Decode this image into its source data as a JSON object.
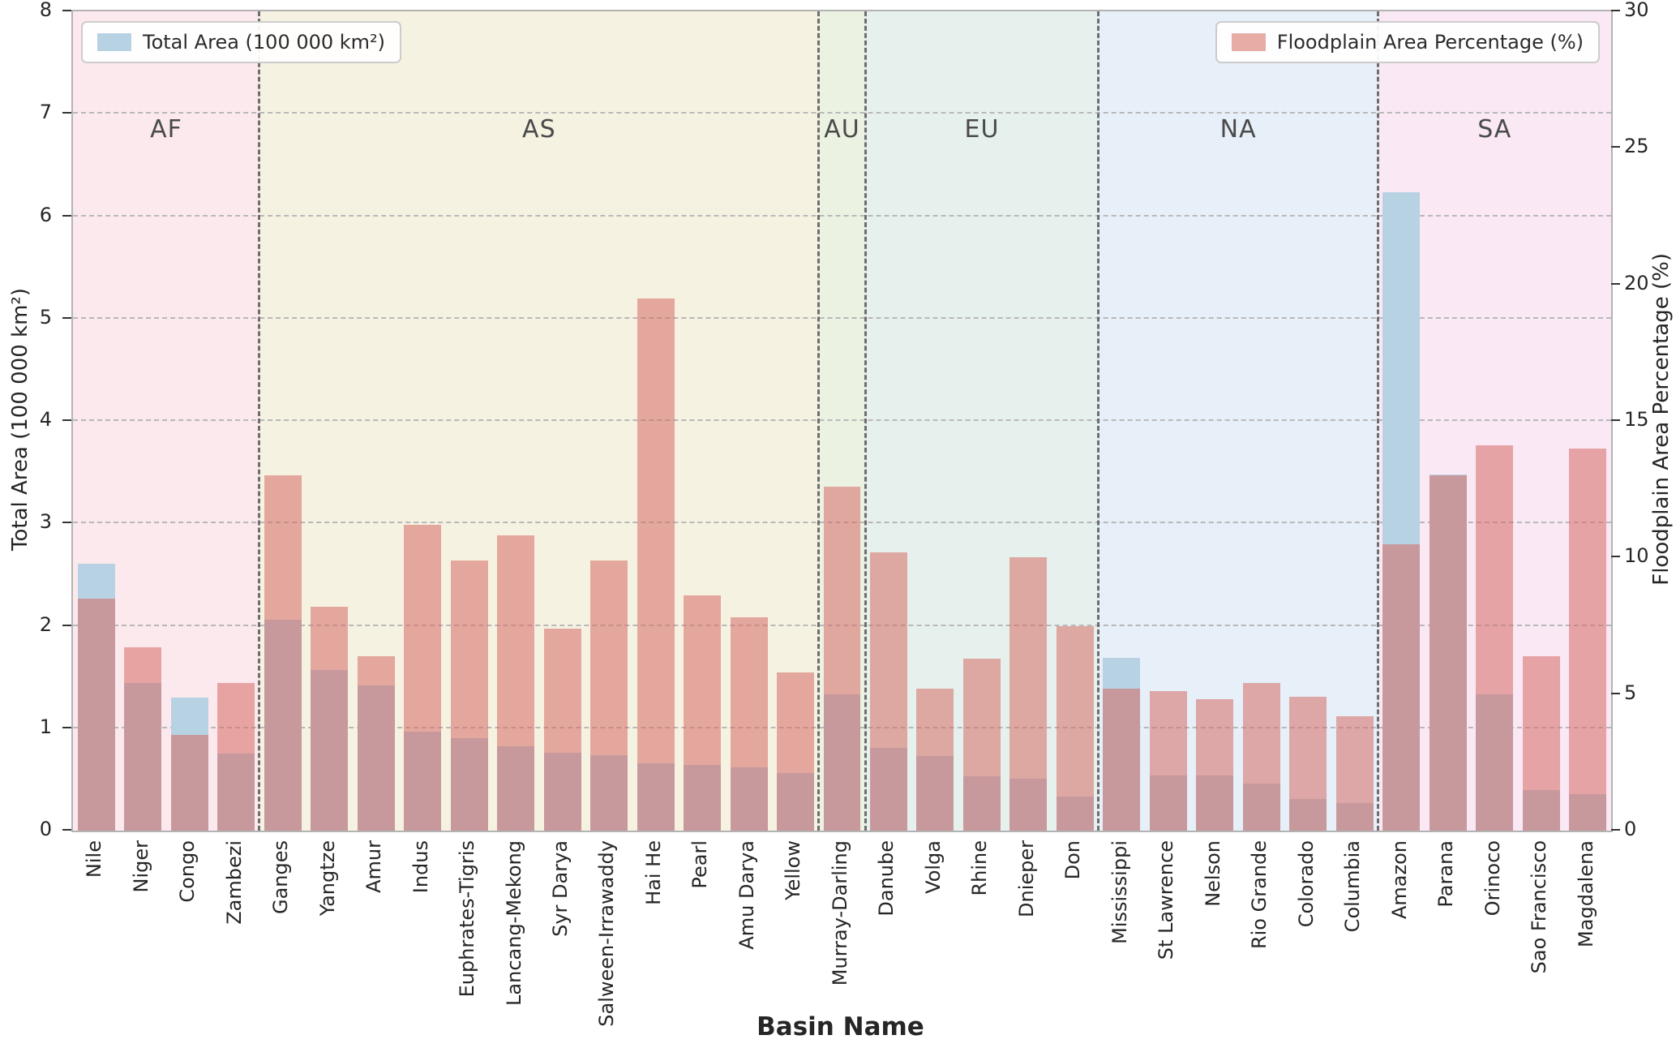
{
  "chart_data": {
    "type": "bar",
    "title": "",
    "xlabel": "Basin Name",
    "ylabel_left": "Total Area (100 000 km²)",
    "ylabel_right": "Floodplain Area Percentage (%)",
    "ylim_left": [
      0,
      8
    ],
    "ylim_right": [
      0,
      30
    ],
    "yticks_left": [
      0,
      1,
      2,
      3,
      4,
      5,
      6,
      7,
      8
    ],
    "yticks_right": [
      0,
      5,
      10,
      15,
      20,
      25,
      30
    ],
    "grid": "horizontal-dashed",
    "legend": {
      "total_area_label": "Total Area (100 000 km²)",
      "floodplain_label": "Floodplain Area Percentage (%)",
      "total_area_color": "#b7d3e3",
      "floodplain_color": "#e8aca7"
    },
    "regions": {
      "AF": {
        "label": "AF",
        "band_color": "#fce9ee"
      },
      "AS": {
        "label": "AS",
        "band_color": "#f6f2e2"
      },
      "AU": {
        "label": "AU",
        "band_color": "#ecf2e2"
      },
      "EU": {
        "label": "EU",
        "band_color": "#e6f1ed"
      },
      "NA": {
        "label": "NA",
        "band_color": "#e7eff8"
      },
      "SA": {
        "label": "SA",
        "band_color": "#fae8f5"
      }
    },
    "series": [
      {
        "name": "Total Area (100 000 km²)",
        "axis": "left"
      },
      {
        "name": "Floodplain Area Percentage (%)",
        "axis": "right"
      }
    ],
    "basins": [
      {
        "name": "Nile",
        "region": "AF",
        "total_area": 2.61,
        "floodplain_pct": 8.5
      },
      {
        "name": "Niger",
        "region": "AF",
        "total_area": 1.44,
        "floodplain_pct": 6.7
      },
      {
        "name": "Congo",
        "region": "AF",
        "total_area": 1.3,
        "floodplain_pct": 3.5
      },
      {
        "name": "Zambezi",
        "region": "AF",
        "total_area": 0.75,
        "floodplain_pct": 5.4
      },
      {
        "name": "Ganges",
        "region": "AS",
        "total_area": 2.06,
        "floodplain_pct": 13.0
      },
      {
        "name": "Yangtze",
        "region": "AS",
        "total_area": 1.57,
        "floodplain_pct": 8.2
      },
      {
        "name": "Amur",
        "region": "AS",
        "total_area": 1.42,
        "floodplain_pct": 6.4
      },
      {
        "name": "Indus",
        "region": "AS",
        "total_area": 0.97,
        "floodplain_pct": 11.2
      },
      {
        "name": "Euphrates-Tigris",
        "region": "AS",
        "total_area": 0.9,
        "floodplain_pct": 9.9
      },
      {
        "name": "Lancang-Mekong",
        "region": "AS",
        "total_area": 0.82,
        "floodplain_pct": 10.8
      },
      {
        "name": "Syr Darya",
        "region": "AS",
        "total_area": 0.76,
        "floodplain_pct": 7.4
      },
      {
        "name": "Salween-Irrawaddy",
        "region": "AS",
        "total_area": 0.74,
        "floodplain_pct": 9.9
      },
      {
        "name": "Hai He",
        "region": "AS",
        "total_area": 0.66,
        "floodplain_pct": 19.5
      },
      {
        "name": "Pearl",
        "region": "AS",
        "total_area": 0.64,
        "floodplain_pct": 8.6
      },
      {
        "name": "Amu Darya",
        "region": "AS",
        "total_area": 0.62,
        "floodplain_pct": 7.8
      },
      {
        "name": "Yellow",
        "region": "AS",
        "total_area": 0.56,
        "floodplain_pct": 5.8
      },
      {
        "name": "Murray-Darling",
        "region": "AU",
        "total_area": 1.33,
        "floodplain_pct": 12.6
      },
      {
        "name": "Danube",
        "region": "EU",
        "total_area": 0.81,
        "floodplain_pct": 10.2
      },
      {
        "name": "Volga",
        "region": "EU",
        "total_area": 0.73,
        "floodplain_pct": 5.2
      },
      {
        "name": "Rhine",
        "region": "EU",
        "total_area": 0.53,
        "floodplain_pct": 6.3
      },
      {
        "name": "Dnieper",
        "region": "EU",
        "total_area": 0.51,
        "floodplain_pct": 10.0
      },
      {
        "name": "Don",
        "region": "EU",
        "total_area": 0.33,
        "floodplain_pct": 7.5
      },
      {
        "name": "Mississippi",
        "region": "NA",
        "total_area": 1.69,
        "floodplain_pct": 5.2
      },
      {
        "name": "St Lawrence",
        "region": "NA",
        "total_area": 0.54,
        "floodplain_pct": 5.1
      },
      {
        "name": "Nelson",
        "region": "NA",
        "total_area": 0.54,
        "floodplain_pct": 4.8
      },
      {
        "name": "Rio Grande",
        "region": "NA",
        "total_area": 0.46,
        "floodplain_pct": 5.4
      },
      {
        "name": "Colorado",
        "region": "NA",
        "total_area": 0.31,
        "floodplain_pct": 4.9
      },
      {
        "name": "Columbia",
        "region": "NA",
        "total_area": 0.27,
        "floodplain_pct": 4.2
      },
      {
        "name": "Amazon",
        "region": "SA",
        "total_area": 6.23,
        "floodplain_pct": 10.5
      },
      {
        "name": "Parana",
        "region": "SA",
        "total_area": 3.48,
        "floodplain_pct": 13.0
      },
      {
        "name": "Orinoco",
        "region": "SA",
        "total_area": 1.33,
        "floodplain_pct": 14.1
      },
      {
        "name": "Sao Francisco",
        "region": "SA",
        "total_area": 0.4,
        "floodplain_pct": 6.4
      },
      {
        "name": "Magdalena",
        "region": "SA",
        "total_area": 0.36,
        "floodplain_pct": 14.0
      }
    ]
  },
  "colors": {
    "bar_blue": "#b7d3e3",
    "bar_red_rgba": "rgba(214,106,101,0.55)",
    "gridline": "#b8b8b8",
    "boundary": "#6e6e6e",
    "region_label_text": "#4a4a4a",
    "tick_text": "#262626"
  }
}
